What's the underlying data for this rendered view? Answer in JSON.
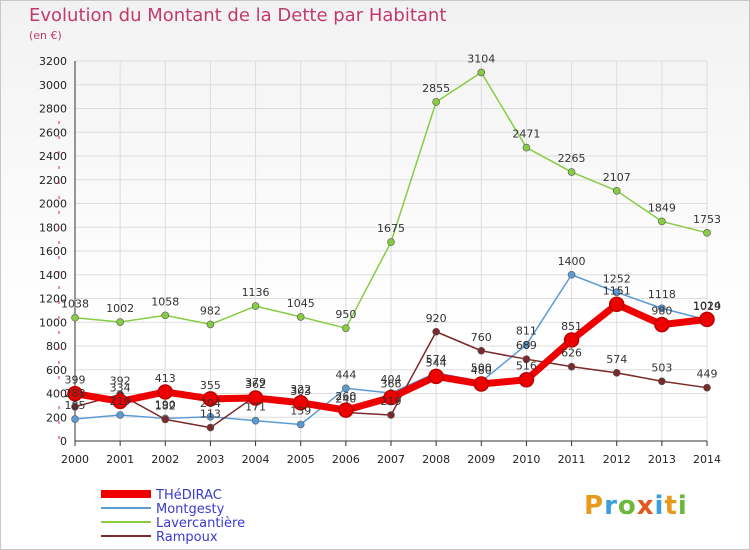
{
  "header": {
    "title": "Evolution du Montant de la Dette par Habitant",
    "subtitle": "(en €)"
  },
  "logo": {
    "text": "Proxiti"
  },
  "colors": {
    "title": "#c03a6e",
    "legend_text": "#3a3ad0",
    "grid": "#dddddd"
  },
  "chart_data": {
    "type": "line",
    "title": "Evolution du Montant de la Dette par Habitant",
    "subtitle": "(en €)",
    "xlabel": "",
    "ylabel": "",
    "x": [
      "2000",
      "2001",
      "2002",
      "2003",
      "2004",
      "2005",
      "2006",
      "2007",
      "2008",
      "2009",
      "2010",
      "2011",
      "2012",
      "2013",
      "2014"
    ],
    "ylim": [
      0,
      3200
    ],
    "yticks": [
      0,
      200,
      400,
      600,
      800,
      1000,
      1200,
      1400,
      1600,
      1800,
      2000,
      2200,
      2400,
      2600,
      2800,
      3000,
      3200
    ],
    "grid": true,
    "legend_position": "bottom-left",
    "series": [
      {
        "name": "THéDIRAC",
        "color": "#ee0000",
        "values": [
          399,
          334,
          413,
          355,
          362,
          322,
          260,
          366,
          544,
          480,
          516,
          851,
          1151,
          980,
          1024
        ]
      },
      {
        "name": "Montgesty",
        "color": "#5b9bd5",
        "values": [
          185,
          219,
          190,
          204,
          171,
          139,
          444,
          404,
          574,
          500,
          811,
          1400,
          1252,
          1118,
          1019
        ]
      },
      {
        "name": "Lavercantière",
        "color": "#88cc44",
        "values": [
          1038,
          1002,
          1058,
          982,
          1136,
          1045,
          950,
          1675,
          2855,
          3104,
          2471,
          2265,
          2107,
          1849,
          1753
        ]
      },
      {
        "name": "Rampoux",
        "color": "#7a2a2a",
        "values": [
          288,
          392,
          182,
          113,
          379,
          303,
          240,
          219,
          920,
          760,
          689,
          626,
          574,
          503,
          449
        ]
      }
    ]
  }
}
